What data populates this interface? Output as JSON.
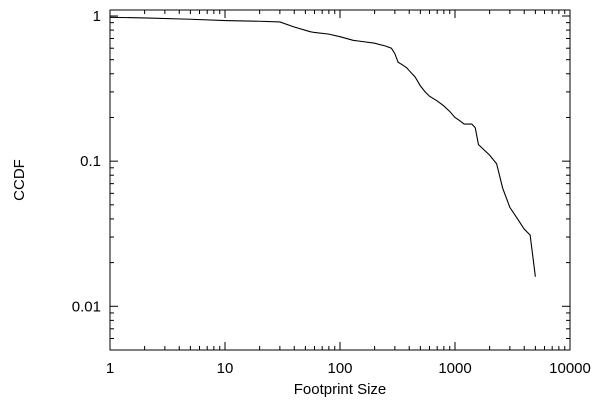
{
  "chart_data": {
    "type": "line",
    "title": "",
    "xlabel": "Footprint Size",
    "ylabel": "CCDF",
    "xscale": "log",
    "yscale": "log",
    "xlim": [
      1,
      10000
    ],
    "ylim": [
      0.005,
      1.1
    ],
    "grid": false,
    "legend": "none",
    "x_ticks": [
      {
        "value": 1,
        "label": "1"
      },
      {
        "value": 10,
        "label": "10"
      },
      {
        "value": 100,
        "label": "100"
      },
      {
        "value": 1000,
        "label": "1000"
      },
      {
        "value": 10000,
        "label": "10000"
      }
    ],
    "y_ticks": [
      {
        "value": 1,
        "label": "1"
      },
      {
        "value": 0.1,
        "label": "0.1"
      },
      {
        "value": 0.01,
        "label": "0.01"
      }
    ],
    "series": [
      {
        "color": "#000000",
        "x": [
          1,
          2,
          5,
          10,
          20,
          30,
          40,
          55,
          60,
          80,
          100,
          130,
          150,
          200,
          250,
          280,
          300,
          320,
          350,
          380,
          400,
          450,
          500,
          550,
          600,
          700,
          800,
          900,
          1000,
          1100,
          1200,
          1400,
          1500,
          1600,
          2000,
          2300,
          2600,
          3000,
          3500,
          4000,
          4500,
          5000
        ],
        "y": [
          0.98,
          0.97,
          0.95,
          0.93,
          0.92,
          0.91,
          0.84,
          0.78,
          0.77,
          0.75,
          0.72,
          0.68,
          0.67,
          0.65,
          0.62,
          0.6,
          0.55,
          0.48,
          0.46,
          0.44,
          0.42,
          0.38,
          0.33,
          0.3,
          0.28,
          0.26,
          0.24,
          0.22,
          0.2,
          0.19,
          0.18,
          0.18,
          0.17,
          0.13,
          0.11,
          0.096,
          0.065,
          0.048,
          0.04,
          0.034,
          0.031,
          0.016
        ]
      }
    ]
  }
}
